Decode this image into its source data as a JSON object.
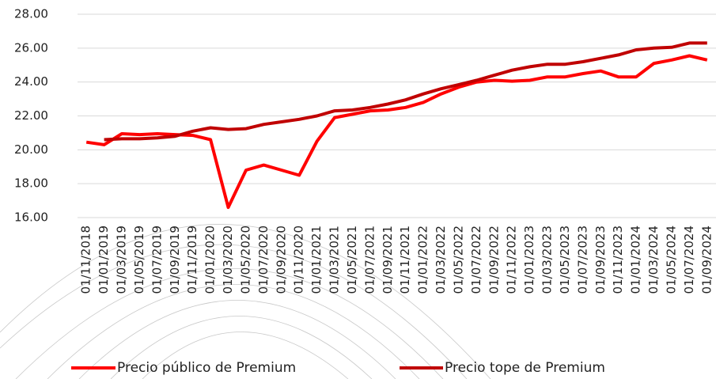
{
  "chart_data": {
    "type": "line",
    "categories": [
      "01/11/2018",
      "01/01/2019",
      "01/03/2019",
      "01/05/2019",
      "01/07/2019",
      "01/09/2019",
      "01/11/2019",
      "01/01/2020",
      "01/03/2020",
      "01/05/2020",
      "01/07/2020",
      "01/09/2020",
      "01/11/2020",
      "01/01/2021",
      "01/03/2021",
      "01/05/2021",
      "01/07/2021",
      "01/09/2021",
      "01/11/2021",
      "01/01/2022",
      "01/03/2022",
      "01/05/2022",
      "01/07/2022",
      "01/09/2022",
      "01/11/2022",
      "01/01/2023",
      "01/03/2023",
      "01/05/2023",
      "01/07/2023",
      "01/09/2023",
      "01/11/2023",
      "01/01/2024",
      "01/03/2024",
      "01/05/2024",
      "01/07/2024",
      "01/09/2024"
    ],
    "series": [
      {
        "name": "Precio público de Premium",
        "color": "#ff0000",
        "values": [
          20.45,
          20.3,
          20.95,
          20.9,
          20.95,
          20.9,
          20.85,
          20.6,
          16.6,
          18.8,
          19.1,
          18.8,
          18.5,
          20.5,
          21.9,
          22.1,
          22.3,
          22.35,
          22.5,
          22.8,
          23.3,
          23.7,
          24.0,
          24.1,
          24.05,
          24.1,
          24.3,
          24.3,
          24.5,
          24.65,
          24.3,
          24.3,
          25.1,
          25.3,
          25.55,
          25.3
        ]
      },
      {
        "name": "Precio tope de Premium",
        "color": "#c00000",
        "values": [
          null,
          20.6,
          20.65,
          20.65,
          20.7,
          20.8,
          21.1,
          21.3,
          21.2,
          21.25,
          21.5,
          21.65,
          21.8,
          22.0,
          22.3,
          22.35,
          22.5,
          22.7,
          22.95,
          23.3,
          23.6,
          23.85,
          24.1,
          24.4,
          24.7,
          24.9,
          25.05,
          25.05,
          25.2,
          25.4,
          25.6,
          25.9,
          26.0,
          26.05,
          26.3,
          26.3
        ]
      }
    ],
    "ylim": [
      16,
      28
    ],
    "yticks": [
      {
        "value": 16,
        "label": "16.00"
      },
      {
        "value": 18,
        "label": "18.00"
      },
      {
        "value": 20,
        "label": "20.00"
      },
      {
        "value": 22,
        "label": "22.00"
      },
      {
        "value": 24,
        "label": "24.00"
      },
      {
        "value": 26,
        "label": "26.00"
      },
      {
        "value": 28,
        "label": "28.00"
      }
    ],
    "grid": true
  }
}
